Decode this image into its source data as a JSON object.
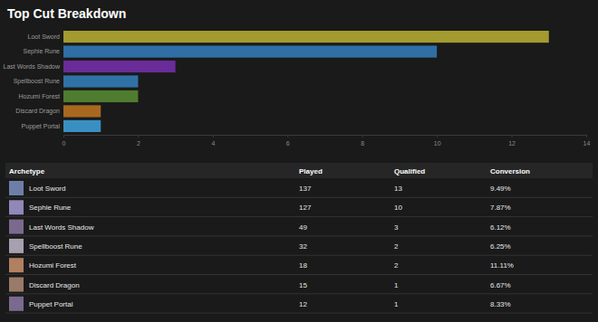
{
  "chart_data": {
    "type": "bar",
    "title": "Top Cut Breakdown",
    "orientation": "horizontal",
    "categories": [
      "Loot Sword",
      "Sephie Rune",
      "Last Words Shadow",
      "Spellboost Rune",
      "Hozumi Forest",
      "Discard Dragon",
      "Puppet Portal"
    ],
    "values": [
      13,
      10,
      3,
      2,
      2,
      1,
      1
    ],
    "colors": [
      "#a39b30",
      "#2f6fa6",
      "#6a2c98",
      "#3072a6",
      "#4f7c2e",
      "#a8691f",
      "#3a8fc2"
    ],
    "xlim": [
      0,
      14
    ],
    "xticks": [
      0,
      2,
      4,
      6,
      8,
      10,
      12,
      14
    ],
    "grid": false
  },
  "table": {
    "columns": [
      "Archetype",
      "Played",
      "Qualified",
      "Conversion"
    ],
    "rows": [
      [
        "Loot Sword",
        137,
        13,
        "9.49%"
      ],
      [
        "Sephie Rune",
        127,
        10,
        "7.87%"
      ],
      [
        "Last Words Shadow",
        49,
        3,
        "6.12%"
      ],
      [
        "Spellboost Rune",
        32,
        2,
        "6.25%"
      ],
      [
        "Hozumi Forest",
        18,
        2,
        "11.11%"
      ],
      [
        "Discard Dragon",
        15,
        1,
        "6.67%"
      ],
      [
        "Puppet Portal",
        12,
        1,
        "8.33%"
      ]
    ]
  }
}
